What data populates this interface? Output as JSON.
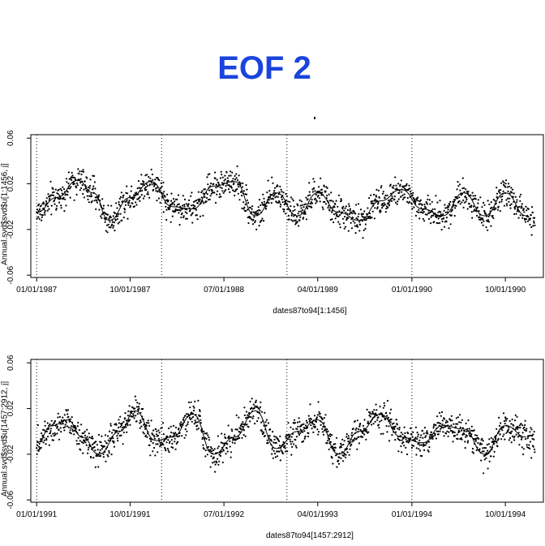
{
  "title": "EOF 2",
  "colors": {
    "title": "#1a44dd",
    "points": "#000000",
    "line": "#000000"
  },
  "chart_data": [
    {
      "type": "scatter",
      "title": "EOF 2",
      "xlabel": "dates87to94[1:1456]",
      "ylabel": "Annual.svd$svd$u[1:1456, j]",
      "x_range": [
        "1986-12-15",
        "1991-01-20"
      ],
      "ylim": [
        -0.062,
        0.063
      ],
      "y_ticks": [
        {
          "value": 0.06,
          "label": "0.06"
        },
        {
          "value": 0.02,
          "label": "0.02"
        },
        {
          "value": -0.02,
          "label": "-0.02"
        },
        {
          "value": -0.06,
          "label": "-0.06"
        }
      ],
      "x_ticks": [
        {
          "date": "1987-01-01",
          "label": "01/01/1987"
        },
        {
          "date": "1987-10-01",
          "label": "10/01/1987"
        },
        {
          "date": "1988-07-01",
          "label": "07/01/1988"
        },
        {
          "date": "1989-04-01",
          "label": "04/01/1989"
        },
        {
          "date": "1990-01-01",
          "label": "01/01/1990"
        },
        {
          "date": "1990-10-01",
          "label": "10/01/1990"
        }
      ],
      "year_boundaries": [
        "1987-01-01",
        "1988-01-01",
        "1989-01-01",
        "1990-01-01"
      ],
      "smooth_line": {
        "x": [
          "1987-01-01",
          "1987-03-01",
          "1987-05-01",
          "1987-06-15",
          "1987-08-01",
          "1987-10-01",
          "1987-12-01",
          "1988-02-01",
          "1988-04-01",
          "1988-06-01",
          "1988-08-01",
          "1988-10-01",
          "1988-12-01",
          "1989-02-01",
          "1989-04-01",
          "1989-06-01",
          "1989-08-01",
          "1989-10-01",
          "1989-12-01",
          "1990-02-01",
          "1990-04-01",
          "1990-06-01",
          "1990-08-01",
          "1990-10-01",
          "1990-12-01"
        ],
        "y": [
          -0.005,
          0.008,
          0.023,
          0.012,
          -0.012,
          0.008,
          0.022,
          0.0,
          -0.002,
          0.018,
          0.022,
          -0.008,
          0.012,
          -0.008,
          0.012,
          -0.005,
          -0.012,
          0.005,
          0.015,
          -0.002,
          -0.008,
          0.012,
          -0.008,
          0.012,
          -0.008
        ]
      },
      "scatter": {
        "count": 1456,
        "x_range": [
          "1987-01-01",
          "1990-12-26"
        ],
        "y_range": [
          -0.056,
          0.058
        ]
      }
    },
    {
      "type": "scatter",
      "xlabel": "dates87to94[1457:2912]",
      "ylabel": "Annual.svd$svd$u[1457:2912, j]",
      "x_range": [
        "1990-12-15",
        "1995-01-20"
      ],
      "ylim": [
        -0.062,
        0.063
      ],
      "y_ticks": [
        {
          "value": 0.06,
          "label": "0.06"
        },
        {
          "value": 0.02,
          "label": "0.02"
        },
        {
          "value": -0.02,
          "label": "-0.02"
        },
        {
          "value": -0.06,
          "label": "-0.06"
        }
      ],
      "x_ticks": [
        {
          "date": "1991-01-01",
          "label": "01/01/1991"
        },
        {
          "date": "1991-10-01",
          "label": "10/01/1991"
        },
        {
          "date": "1992-07-01",
          "label": "07/01/1992"
        },
        {
          "date": "1993-04-01",
          "label": "04/01/1993"
        },
        {
          "date": "1994-01-01",
          "label": "01/01/1994"
        },
        {
          "date": "1994-10-01",
          "label": "10/01/1994"
        }
      ],
      "year_boundaries": [
        "1991-01-01",
        "1992-01-01",
        "1993-01-01",
        "1994-01-01"
      ],
      "smooth_line": {
        "x": [
          "1991-01-01",
          "1991-02-15",
          "1991-04-01",
          "1991-05-15",
          "1991-07-01",
          "1991-09-01",
          "1991-10-15",
          "1991-12-15",
          "1992-02-01",
          "1992-04-01",
          "1992-06-01",
          "1992-08-01",
          "1992-10-01",
          "1992-12-01",
          "1993-02-01",
          "1993-04-01",
          "1993-06-01",
          "1993-08-01",
          "1993-10-01",
          "1993-12-01",
          "1994-02-01",
          "1994-04-01",
          "1994-06-01",
          "1994-08-01",
          "1994-10-01",
          "1994-12-01"
        ],
        "y": [
          -0.01,
          0.005,
          0.01,
          -0.005,
          -0.02,
          0.0,
          0.018,
          -0.008,
          -0.005,
          0.015,
          -0.02,
          -0.005,
          0.018,
          -0.015,
          0.0,
          0.01,
          -0.02,
          0.0,
          0.015,
          -0.005,
          -0.01,
          0.005,
          0.002,
          -0.02,
          0.005,
          -0.005
        ]
      },
      "scatter": {
        "count": 1456,
        "x_range": [
          "1991-01-01",
          "1994-12-26"
        ],
        "y_range": [
          -0.058,
          0.057
        ]
      }
    }
  ]
}
